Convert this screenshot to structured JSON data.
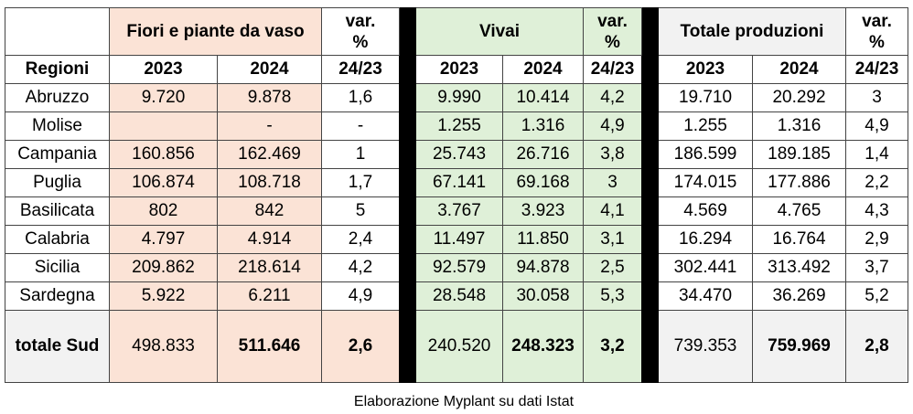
{
  "header": {
    "group1": "Fiori e piante da vaso",
    "group2": "Vivai",
    "group3": "Totale produzioni",
    "var_label_line1": "var.",
    "var_label_line2": "%"
  },
  "subheader": {
    "regioni": "Regioni",
    "y2023": "2023",
    "y2024": "2024",
    "var": "24/23"
  },
  "rows": [
    {
      "region": "Abruzzo",
      "f23": "9.720",
      "f24": "9.878",
      "fv": "1,6",
      "v23": "9.990",
      "v24": "10.414",
      "vv": "4,2",
      "t23": "19.710",
      "t24": "20.292",
      "tv": "3"
    },
    {
      "region": "Molise",
      "f23": "",
      "f24": "-",
      "fv": "-",
      "v23": "1.255",
      "v24": "1.316",
      "vv": "4,9",
      "t23": "1.255",
      "t24": "1.316",
      "tv": "4,9"
    },
    {
      "region": "Campania",
      "f23": "160.856",
      "f24": "162.469",
      "fv": "1",
      "v23": "25.743",
      "v24": "26.716",
      "vv": "3,8",
      "t23": "186.599",
      "t24": "189.185",
      "tv": "1,4"
    },
    {
      "region": "Puglia",
      "f23": "106.874",
      "f24": "108.718",
      "fv": "1,7",
      "v23": "67.141",
      "v24": "69.168",
      "vv": "3",
      "t23": "174.015",
      "t24": "177.886",
      "tv": "2,2"
    },
    {
      "region": "Basilicata",
      "f23": "802",
      "f24": "842",
      "fv": "5",
      "v23": "3.767",
      "v24": "3.923",
      "vv": "4,1",
      "t23": "4.569",
      "t24": "4.765",
      "tv": "4,3"
    },
    {
      "region": "Calabria",
      "f23": "4.797",
      "f24": "4.914",
      "fv": "2,4",
      "v23": "11.497",
      "v24": "11.850",
      "vv": "3,1",
      "t23": "16.294",
      "t24": "16.764",
      "tv": "2,9"
    },
    {
      "region": "Sicilia",
      "f23": "209.862",
      "f24": "218.614",
      "fv": "4,2",
      "v23": "92.579",
      "v24": "94.878",
      "vv": "2,5",
      "t23": "302.441",
      "t24": "313.492",
      "tv": "3,7"
    },
    {
      "region": "Sardegna",
      "f23": "5.922",
      "f24": "6.211",
      "fv": "4,9",
      "v23": "28.548",
      "v24": "30.058",
      "vv": "5,3",
      "t23": "34.470",
      "t24": "36.269",
      "tv": "5,2"
    }
  ],
  "total": {
    "region": "totale Sud",
    "f23": "498.833",
    "f24": "511.646",
    "fv": "2,6",
    "v23": "240.520",
    "v24": "248.323",
    "vv": "3,2",
    "t23": "739.353",
    "t24": "759.969",
    "tv": "2,8"
  },
  "caption": "Elaborazione Myplant su dati Istat"
}
